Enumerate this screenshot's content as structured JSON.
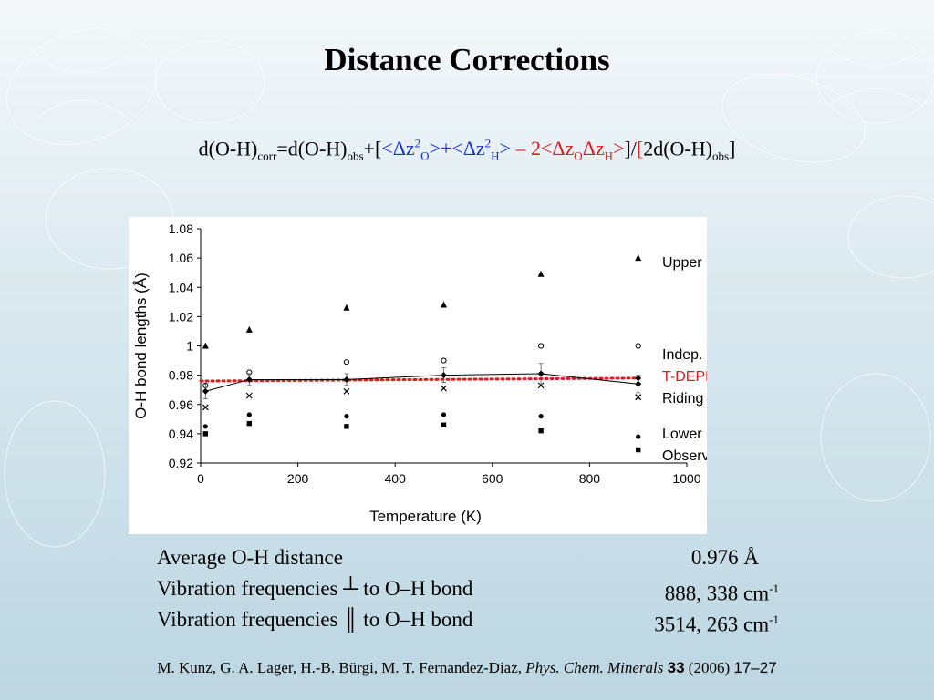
{
  "slide": {
    "title": "Distance Corrections"
  },
  "formula": {
    "p1": "d(O-H)",
    "s1": "corr",
    "p2": "=d(O-H)",
    "s2": "obs",
    "p3": "+[",
    "b1": "<Δz",
    "b1sup": "2",
    "b1sub": "O",
    "b2": ">+<Δz",
    "b2sup": "2",
    "b2sub": "H",
    "b3": ">",
    "r1": " – 2<Δz",
    "r1sub": "O",
    "r2": "Δz",
    "r2sub": "H",
    "r3": ">",
    "p4": "]/",
    "r4": "[",
    "p5": "2d(O-H)",
    "s5": "obs",
    "p6": "]"
  },
  "chart_data": {
    "type": "scatter",
    "xlabel": "Temperature (K)",
    "ylabel": "O-H bond lengths (Å)",
    "xlim": [
      0,
      1000
    ],
    "ylim": [
      0.92,
      1.08
    ],
    "x_ticks": [
      "0",
      "200",
      "400",
      "600",
      "800",
      "1000"
    ],
    "y_ticks": [
      "0.92",
      "0.94",
      "0.96",
      "0.98",
      "1",
      "1.02",
      "1.04",
      "1.06",
      "1.08"
    ],
    "grid": false,
    "legend_position": "right",
    "series": [
      {
        "name": "Upper limit",
        "marker": "triangle",
        "x": [
          10,
          100,
          300,
          500,
          700
        ],
        "y": [
          1.0,
          1.011,
          1.026,
          1.028,
          1.049
        ]
      },
      {
        "name": "Indep. Motion",
        "marker": "open-circle",
        "x": [
          10,
          100,
          300,
          500,
          700
        ],
        "y": [
          0.973,
          0.982,
          0.989,
          0.99,
          1.0
        ]
      },
      {
        "name": "T-DEPENDANCE",
        "marker": "dotted-line",
        "color": "#e01a1a",
        "x": [
          0,
          900
        ],
        "y": [
          0.976,
          0.978
        ]
      },
      {
        "name": "Riding motion",
        "marker": "cross",
        "x": [
          10,
          100,
          300,
          500,
          700,
          900
        ],
        "y": [
          0.958,
          0.966,
          0.969,
          0.971,
          0.973,
          0.965
        ]
      },
      {
        "name": "Lower Limit",
        "marker": "filled-circle",
        "x": [
          10,
          100,
          300,
          500,
          700
        ],
        "y": [
          0.945,
          0.953,
          0.952,
          0.953,
          0.952
        ]
      },
      {
        "name": "Observed",
        "marker": "square",
        "x": [
          10,
          100,
          300,
          500,
          700
        ],
        "y": [
          0.94,
          0.947,
          0.945,
          0.946,
          0.942
        ]
      },
      {
        "name": "",
        "marker": "diamond-line",
        "x": [
          10,
          100,
          300,
          500,
          700,
          900
        ],
        "y": [
          0.969,
          0.977,
          0.977,
          0.98,
          0.981,
          0.974
        ],
        "err": [
          0.005,
          0.004,
          0.004,
          0.005,
          0.007,
          0.006
        ]
      }
    ],
    "legend_extra": [
      {
        "marker": "triangle",
        "y": 1.06
      },
      {
        "marker": "open-circle",
        "y": 1.0
      },
      {
        "marker": "filled-circle",
        "y": 0.938
      },
      {
        "marker": "square",
        "y": 0.929
      },
      {
        "marker": "diamond-line",
        "y": 0.978
      },
      {
        "marker": "cross",
        "y": 0.965
      }
    ]
  },
  "stats": {
    "avg_label": "Average O-H distance",
    "avg_value": "0.976 Å",
    "perp_label": "Vibration frequencies ┴ to O–H bond",
    "perp_value": "888, 338 cm",
    "perp_sup": "-1",
    "par_label": "Vibration frequencies ║ to O–H bond",
    "par_value": "3514, 263 cm",
    "par_sup": "-1"
  },
  "citation": {
    "authors": "M. Kunz, G. A. Lager, H.-B. Bürgi, M. T. Fernandez-Diaz, ",
    "journal": "Phys. Chem. Minerals",
    "volume": "33",
    "year": "(2006)",
    "pages": "17–27"
  }
}
